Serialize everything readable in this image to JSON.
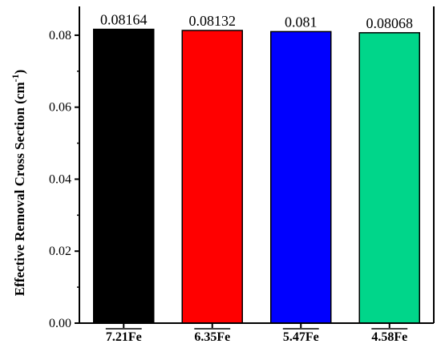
{
  "chart_data": {
    "type": "bar",
    "title": "",
    "xlabel": "",
    "ylabel": "Effective Removal Cross Section (cm",
    "ylabel_superscript": "-1",
    "ylabel_close": ")",
    "categories": [
      "7.21Fe",
      "6.35Fe",
      "5.47Fe",
      "4.58Fe"
    ],
    "values": [
      0.08164,
      0.08132,
      0.081,
      0.08068
    ],
    "data_labels": [
      "0.08164",
      "0.08132",
      "0.081",
      "0.08068"
    ],
    "colors": [
      "#000000",
      "#ff0000",
      "#0000ff",
      "#00d68a"
    ],
    "ylim": [
      0,
      0.088
    ],
    "yticks": [
      0.0,
      0.02,
      0.04,
      0.06,
      0.08
    ],
    "ytick_labels": [
      "0.00",
      "0.02",
      "0.04",
      "0.06",
      "0.08"
    ],
    "category_overline": true,
    "grid": false,
    "legend": "none"
  }
}
